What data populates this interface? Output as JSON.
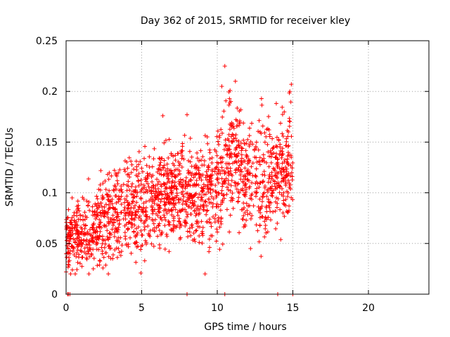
{
  "chart_data": {
    "type": "scatter",
    "title": "Day 362 of 2015, SRMTID for receiver kley",
    "xlabel": "GPS time / hours",
    "ylabel": "SRMTID / TECUs",
    "xlim": [
      0,
      24
    ],
    "ylim": [
      0,
      0.25
    ],
    "x_ticks": [
      0,
      5,
      10,
      15,
      20
    ],
    "x_tick_labels": [
      "0",
      "5",
      "10",
      "15",
      "20"
    ],
    "y_ticks": [
      0,
      0.05,
      0.1,
      0.15,
      0.2,
      0.25
    ],
    "y_tick_labels": [
      "0",
      "0.05",
      "0.1",
      "0.15",
      "0.2",
      "0.25"
    ],
    "grid": true,
    "marker": "+",
    "color": "#ff0000",
    "x_range_of_data": [
      0,
      15
    ],
    "trend": [
      {
        "x": 0.0,
        "y_center": 0.055,
        "y_spread": 0.02
      },
      {
        "x": 1.0,
        "y_center": 0.058,
        "y_spread": 0.022
      },
      {
        "x": 2.0,
        "y_center": 0.065,
        "y_spread": 0.025
      },
      {
        "x": 3.0,
        "y_center": 0.078,
        "y_spread": 0.028
      },
      {
        "x": 4.0,
        "y_center": 0.082,
        "y_spread": 0.028
      },
      {
        "x": 5.0,
        "y_center": 0.088,
        "y_spread": 0.03
      },
      {
        "x": 6.0,
        "y_center": 0.095,
        "y_spread": 0.03
      },
      {
        "x": 7.0,
        "y_center": 0.1,
        "y_spread": 0.03
      },
      {
        "x": 8.0,
        "y_center": 0.098,
        "y_spread": 0.032
      },
      {
        "x": 9.0,
        "y_center": 0.092,
        "y_spread": 0.032
      },
      {
        "x": 10.0,
        "y_center": 0.11,
        "y_spread": 0.04
      },
      {
        "x": 11.0,
        "y_center": 0.14,
        "y_spread": 0.04
      },
      {
        "x": 12.0,
        "y_center": 0.12,
        "y_spread": 0.038
      },
      {
        "x": 13.0,
        "y_center": 0.11,
        "y_spread": 0.04
      },
      {
        "x": 14.0,
        "y_center": 0.125,
        "y_spread": 0.035
      },
      {
        "x": 15.0,
        "y_center": 0.13,
        "y_spread": 0.035
      }
    ],
    "highlight_points": [
      {
        "x": 10.5,
        "y": 0.225
      },
      {
        "x": 10.3,
        "y": 0.205
      },
      {
        "x": 11.2,
        "y": 0.21
      },
      {
        "x": 14.9,
        "y": 0.207
      },
      {
        "x": 14.8,
        "y": 0.2
      },
      {
        "x": 8.0,
        "y": 0.177
      },
      {
        "x": 6.4,
        "y": 0.176
      },
      {
        "x": 0.4,
        "y": 0.095
      },
      {
        "x": 0.0,
        "y": 0.022
      },
      {
        "x": 1.8,
        "y": 0.025
      },
      {
        "x": 5.2,
        "y": 0.033
      },
      {
        "x": 12.2,
        "y": 0.045
      }
    ],
    "zero_points_x": [
      0.1,
      0.15,
      0.25,
      8.0,
      10.5,
      14.0,
      15.0
    ],
    "n_points": 1800
  }
}
